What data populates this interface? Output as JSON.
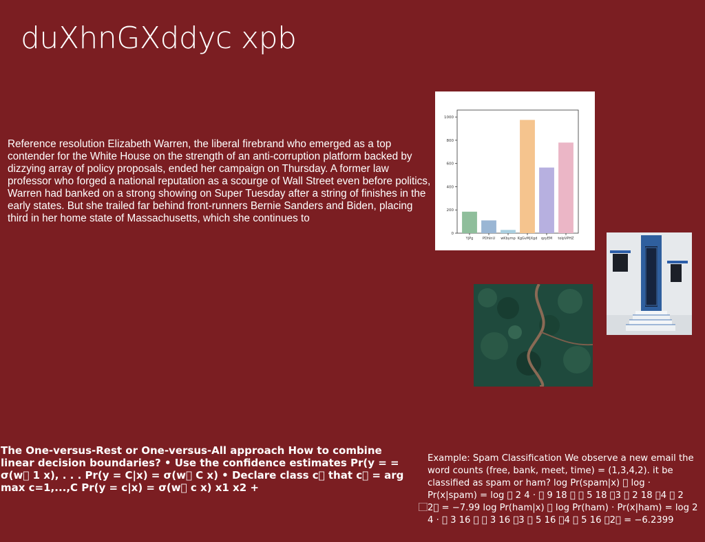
{
  "slide": {
    "title": "duXhnGXddyc xpb",
    "paragraph": "Reference resolution Elizabeth Warren, the liberal firebrand who emerged as a top contender for the White House on the strength of an anti-corruption platform backed by dizzying array of policy proposals, ended her campaign on Thursday. A former law professor who forged a national reputation as a scourge of Wall Street even before politics, Warren had banked on a strong showing on Super Tuesday after a string of finishes in the early states. But she trailed far behind front-runners Bernie Sanders and Biden, placing third in her home state of Massachusetts, which she continues to",
    "ovr_text": "The One-versus-Rest or One-versus-All approach How to combine linear decision boundaries? • Use the confidence estimates Pr(y = = σ(w⃞ 1 x), . . . Pr(y = C|x) = σ(w⃞ C x) • Declare class c⃞ that c⃞ = arg max c=1,...,C Pr(y = c|x) = σ(w⃞ c x) x1 x2 +",
    "spam_text": "Example: Spam Classification We observe a new email the word counts (free, bank, meet, time) = (1,3,4,2). it be classified as spam or ham? log Pr(spam|x) ⃞ log · Pr(x|spam) = log ⃞ 2 4 · ⃞ 9 18 ⃞ ⃞ 5 18 ⃞3 ⃞ 2 18 ⃞4 ⃞ 2 ⃞2⃞ = −7.99 log Pr(ham|x) ⃞ log Pr(ham) · Pr(x|ham) = log 2 4 · ⃞ 3 16 ⃞ ⃞ 3 16 ⃞3 ⃞ 5 16 ⃞4 ⃞ 5 16 ⃞2⃞ = −6.2399"
  },
  "images": {
    "door_photo": "door-photo-icon",
    "forest_photo": "forest-river-photo-icon"
  },
  "chart_data": {
    "type": "bar",
    "categories": [
      "YjPg",
      "PDhlnU",
      "wKbymp",
      "KgGvMjXgd",
      "qzyEM",
      "tolpVPHZ"
    ],
    "values": [
      185,
      110,
      28,
      975,
      565,
      780
    ],
    "colors": [
      "#8fbe9b",
      "#9ab6d4",
      "#a9cfe0",
      "#f5c48e",
      "#b7b0e0",
      "#ebb6c6"
    ],
    "yticks": [
      0,
      200,
      400,
      600,
      800,
      1000
    ],
    "ylim": [
      0,
      1060
    ],
    "title": "",
    "xlabel": "",
    "ylabel": "",
    "grid": false
  }
}
